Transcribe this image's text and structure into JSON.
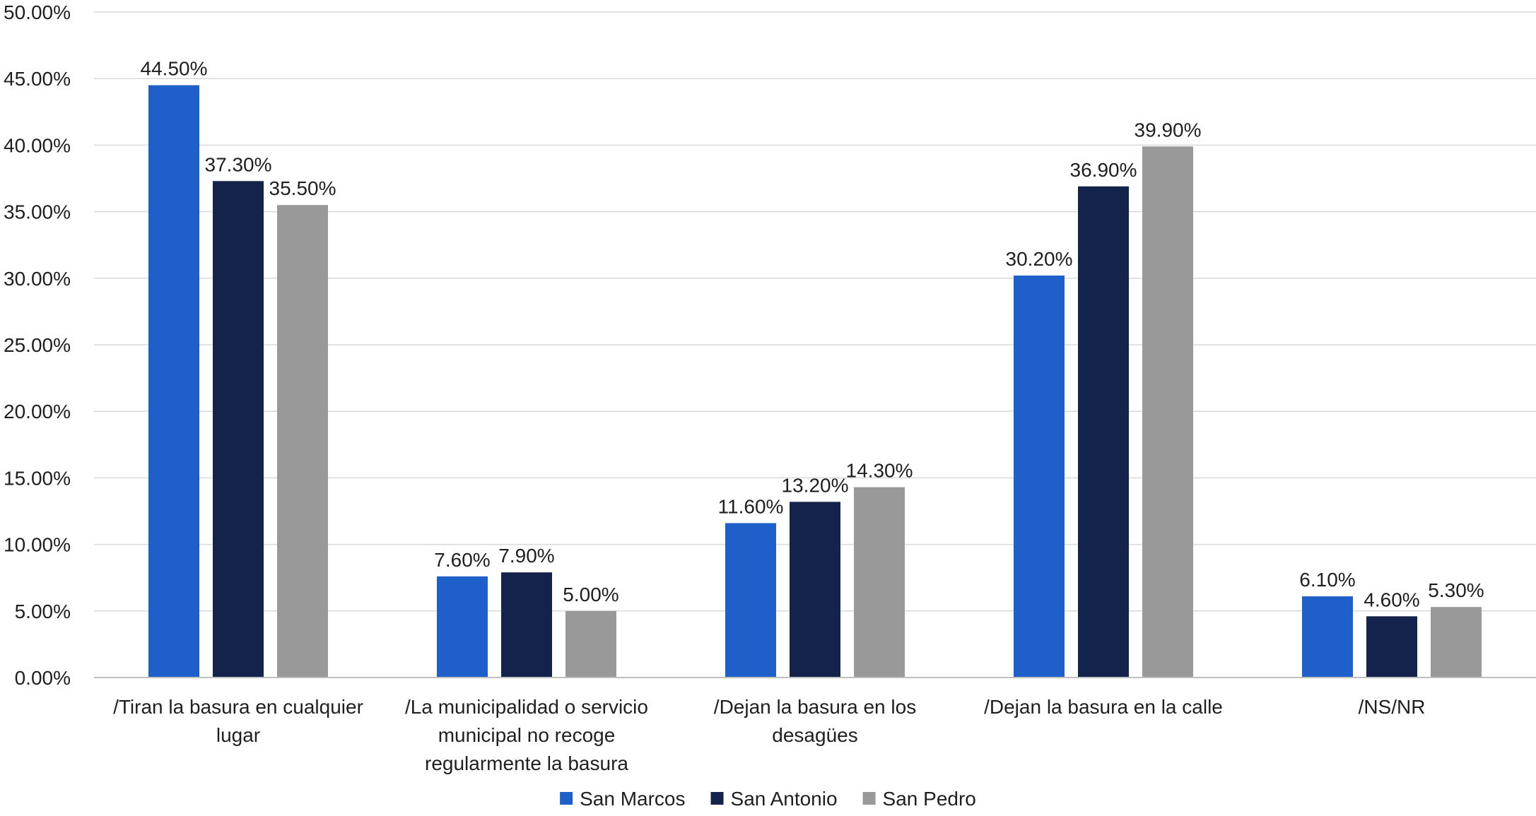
{
  "chart_data": {
    "type": "bar",
    "title": "",
    "xlabel": "",
    "ylabel": "",
    "ylim": [
      0,
      50
    ],
    "ytick_step": 5,
    "ytick_format": "percent_2dp",
    "grid": true,
    "legend_position": "bottom-center",
    "categories": [
      [
        "/Tiran la basura en cualquier",
        "lugar"
      ],
      [
        "/La municipalidad o servicio",
        "municipal no recoge",
        "regularmente la basura"
      ],
      [
        "/Dejan la basura en los",
        "desagües"
      ],
      [
        "/Dejan la basura en la calle"
      ],
      [
        "/NS/NR"
      ]
    ],
    "series": [
      {
        "name": "San Marcos",
        "color": "#1f5fc9",
        "values": [
          44.5,
          7.6,
          11.6,
          30.2,
          6.1
        ],
        "labels": [
          "44.50%",
          "7.60%",
          "11.60%",
          "30.20%",
          "6.10%"
        ]
      },
      {
        "name": "San Antonio",
        "color": "#14234b",
        "values": [
          37.3,
          7.9,
          13.2,
          36.9,
          4.6
        ],
        "labels": [
          "37.30%",
          "7.90%",
          "13.20%",
          "36.90%",
          "4.60%"
        ]
      },
      {
        "name": "San Pedro",
        "color": "#999999",
        "values": [
          35.5,
          5.0,
          14.3,
          39.9,
          5.3
        ],
        "labels": [
          "35.50%",
          "5.00%",
          "14.30%",
          "39.90%",
          "5.30%"
        ]
      }
    ]
  }
}
